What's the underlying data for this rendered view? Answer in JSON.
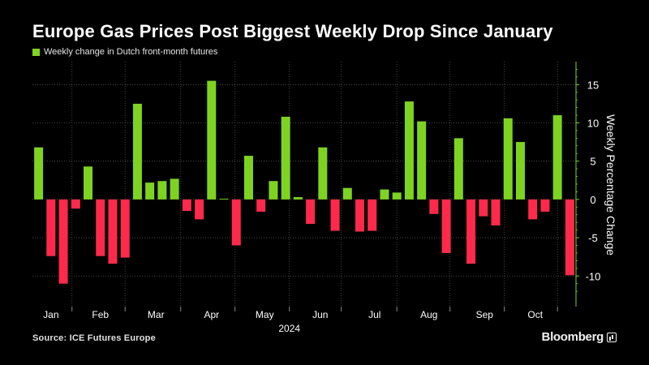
{
  "header": {
    "title": "Europe Gas Prices Post Biggest Weekly Drop Since January"
  },
  "colors": {
    "positive": "#7ed321",
    "negative": "#ff2a4b",
    "grid": "#555555",
    "axis": "#7ed321",
    "background": "#000000"
  },
  "chart_data": {
    "type": "bar",
    "title": "Europe Gas Prices Post Biggest Weekly Drop Since January",
    "legend": [
      {
        "label": "Weekly change in Dutch front-month futures",
        "color": "#7ed321"
      }
    ],
    "ylabel": "Weekly Percentage Change",
    "xlabel": "2024",
    "ylim": [
      -14,
      18
    ],
    "yticks": [
      15,
      10,
      5,
      0,
      -5,
      -10
    ],
    "grid": true,
    "legend_position": "top-left",
    "months": [
      "Jan",
      "Feb",
      "Mar",
      "Apr",
      "May",
      "Jun",
      "Jul",
      "Aug",
      "Sep",
      "Oct"
    ],
    "month_tick_week": [
      3.2,
      7.5,
      12.0,
      16.4,
      20.8,
      25.0,
      29.5,
      33.8,
      38.2,
      42.5
    ],
    "month_label_week": [
      1.5,
      5.5,
      10.0,
      14.5,
      18.8,
      23.3,
      27.7,
      32.1,
      36.6,
      40.7
    ],
    "year_label": "2024",
    "week_count": 44,
    "values": [
      6.8,
      -7.4,
      -11.0,
      -1.2,
      4.3,
      -7.4,
      -8.4,
      -7.6,
      12.5,
      2.2,
      2.4,
      2.7,
      -1.5,
      -2.6,
      15.5,
      0.1,
      -6.0,
      5.7,
      -1.6,
      2.4,
      10.8,
      0.3,
      -3.2,
      6.8,
      -4.1,
      1.5,
      -4.2,
      -4.1,
      1.3,
      0.9,
      12.8,
      10.2,
      -1.9,
      -7.0,
      8.0,
      -8.4,
      -2.2,
      -3.4,
      10.6,
      7.5,
      -2.6,
      -1.6,
      11.0,
      -9.9
    ]
  },
  "footer": {
    "source": "Source: ICE Futures Europe",
    "brand": "Bloomberg"
  }
}
